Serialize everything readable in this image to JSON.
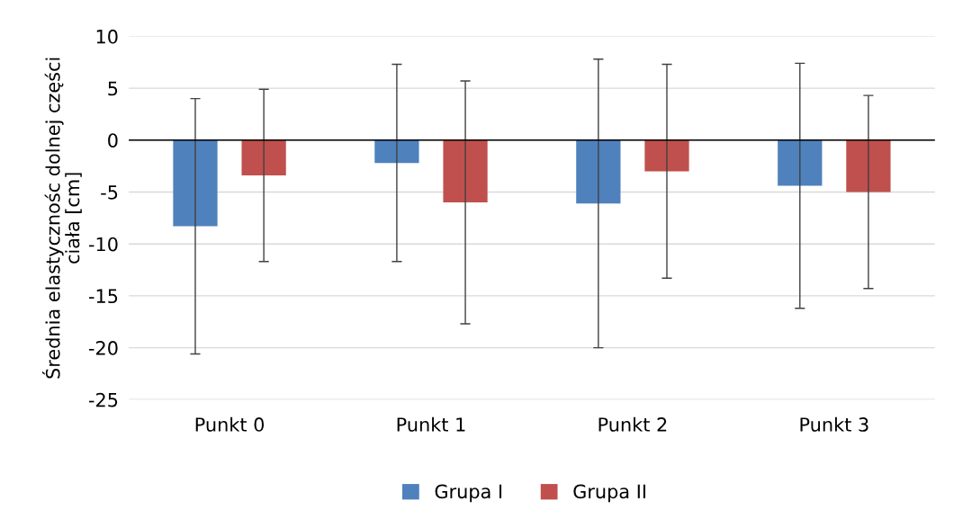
{
  "chart_data": {
    "type": "bar",
    "ylabel": "Średnia elastycznośc dolnej części\nciała [cm]",
    "categories": [
      "Punkt 0",
      "Punkt 1",
      "Punkt 2",
      "Punkt 3"
    ],
    "series": [
      {
        "name": "Grupa I",
        "color": "#4f81bd",
        "values": [
          -8.3,
          -2.2,
          -6.1,
          -4.4
        ],
        "errors": [
          12.3,
          9.5,
          13.9,
          11.8
        ]
      },
      {
        "name": "Grupa II",
        "color": "#c0504d",
        "values": [
          -3.4,
          -6.0,
          -3.0,
          -5.0
        ],
        "errors": [
          8.3,
          11.7,
          10.3,
          9.3
        ]
      }
    ],
    "ylim": [
      -25,
      10
    ],
    "yticks": [
      -25,
      -20,
      -15,
      -10,
      -5,
      0,
      5,
      10
    ],
    "grid": "y",
    "legend": "bottom"
  }
}
